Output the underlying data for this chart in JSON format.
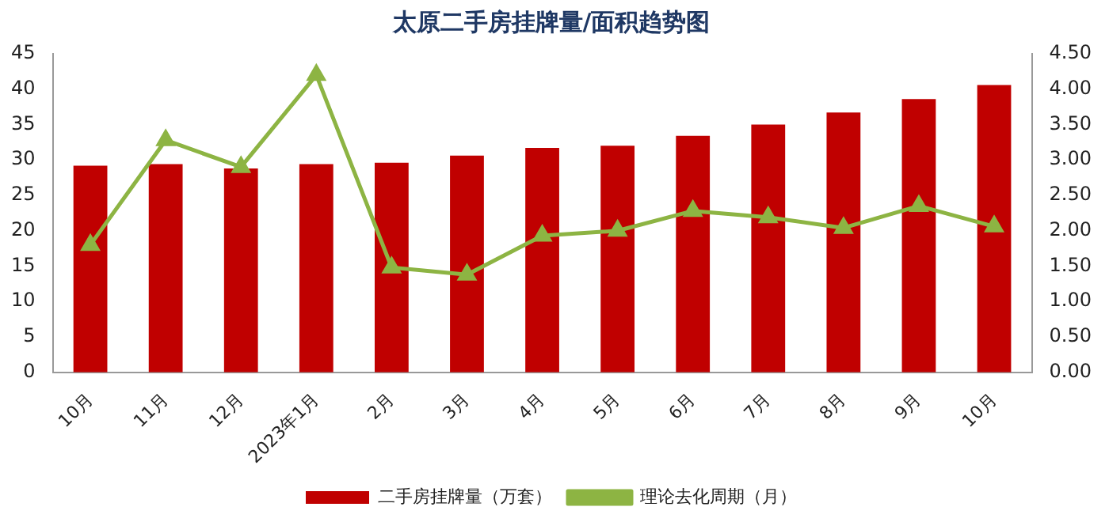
{
  "chart_data": {
    "type": "bar",
    "title": "太原二手房挂牌量/面积趋势图",
    "categories": [
      "10月",
      "11月",
      "12月",
      "2023年1月",
      "2月",
      "3月",
      "4月",
      "5月",
      "6月",
      "7月",
      "8月",
      "9月",
      "10月"
    ],
    "series": [
      {
        "name": "二手房挂牌量（万套）",
        "color": "#c00000",
        "values": [
          29.2,
          29.4,
          28.8,
          29.4,
          29.6,
          30.6,
          31.7,
          32.0,
          33.4,
          35.0,
          36.7,
          38.6,
          40.6
        ]
      },
      {
        "name": "理论去化周期（月）",
        "type": "line",
        "axis": "y2",
        "color": "#8db443",
        "marker": "triangle",
        "values": [
          1.8,
          3.28,
          2.9,
          4.2,
          1.48,
          1.38,
          1.93,
          2.0,
          2.28,
          2.19,
          2.04,
          2.35,
          2.06
        ]
      }
    ],
    "ylim": [
      0,
      45
    ],
    "yticks": [
      0,
      5,
      10,
      15,
      20,
      25,
      30,
      35,
      40,
      45
    ],
    "y2lim": [
      0,
      4.5
    ],
    "y2ticks": [
      {
        "value": 0,
        "label": "0.00"
      },
      {
        "value": 0.5,
        "label": "0.50"
      },
      {
        "value": 1,
        "label": "1.00"
      },
      {
        "value": 1.5,
        "label": "1.50"
      },
      {
        "value": 2,
        "label": "2.00"
      },
      {
        "value": 2.5,
        "label": "2.50"
      },
      {
        "value": 3,
        "label": "3.00"
      },
      {
        "value": 3.5,
        "label": "3.50"
      },
      {
        "value": 4,
        "label": "4.00"
      },
      {
        "value": 4.5,
        "label": "4.50"
      }
    ],
    "grid": false,
    "legend": "bottom"
  }
}
